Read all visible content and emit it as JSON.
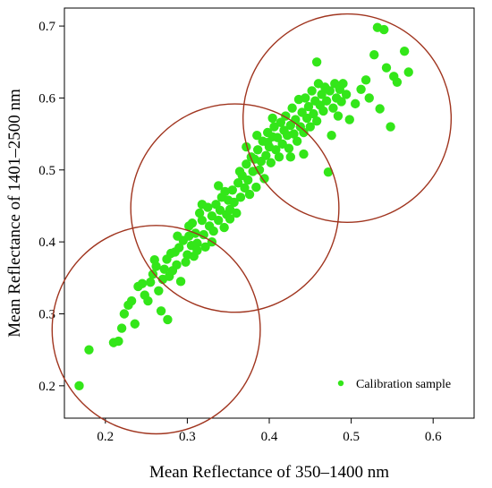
{
  "chart_data": {
    "type": "scatter",
    "xlabel": "Mean Reflectance of 350–1400 nm",
    "ylabel": "Mean Reflectance of 1401–2500 nm",
    "xlim": [
      0.15,
      0.65
    ],
    "ylim": [
      0.155,
      0.725
    ],
    "x_ticks": [
      0.2,
      0.3,
      0.4,
      0.5,
      0.6
    ],
    "x_tick_labels": [
      "0.2",
      "0.3",
      "0.4",
      "0.5",
      "0.6"
    ],
    "y_ticks": [
      0.2,
      0.3,
      0.4,
      0.5,
      0.6,
      0.7
    ],
    "y_tick_labels": [
      "0.2",
      "0.3",
      "0.4",
      "0.5",
      "0.6",
      "0.7"
    ],
    "grid": false,
    "legend": {
      "position": "bottom-right",
      "entries": [
        "Calibration sample"
      ]
    },
    "colors": {
      "points": "#33e619",
      "circles": "#a0351f"
    },
    "circles": [
      {
        "cx": 0.262,
        "cy": 0.278,
        "radius_x": 0.127
      },
      {
        "cx": 0.358,
        "cy": 0.447,
        "radius_x": 0.127
      },
      {
        "cx": 0.495,
        "cy": 0.572,
        "radius_x": 0.127
      }
    ],
    "series": [
      {
        "name": "Calibration sample",
        "points": [
          [
            0.168,
            0.2
          ],
          [
            0.18,
            0.25
          ],
          [
            0.21,
            0.26
          ],
          [
            0.216,
            0.262
          ],
          [
            0.22,
            0.28
          ],
          [
            0.223,
            0.3
          ],
          [
            0.228,
            0.312
          ],
          [
            0.232,
            0.318
          ],
          [
            0.236,
            0.286
          ],
          [
            0.24,
            0.338
          ],
          [
            0.245,
            0.342
          ],
          [
            0.248,
            0.326
          ],
          [
            0.252,
            0.318
          ],
          [
            0.255,
            0.344
          ],
          [
            0.258,
            0.355
          ],
          [
            0.262,
            0.366
          ],
          [
            0.265,
            0.332
          ],
          [
            0.268,
            0.304
          ],
          [
            0.27,
            0.348
          ],
          [
            0.272,
            0.362
          ],
          [
            0.275,
            0.376
          ],
          [
            0.276,
            0.292
          ],
          [
            0.278,
            0.352
          ],
          [
            0.28,
            0.384
          ],
          [
            0.282,
            0.36
          ],
          [
            0.285,
            0.386
          ],
          [
            0.287,
            0.368
          ],
          [
            0.29,
            0.392
          ],
          [
            0.292,
            0.345
          ],
          [
            0.295,
            0.402
          ],
          [
            0.298,
            0.372
          ],
          [
            0.3,
            0.382
          ],
          [
            0.302,
            0.408
          ],
          [
            0.305,
            0.395
          ],
          [
            0.306,
            0.426
          ],
          [
            0.308,
            0.38
          ],
          [
            0.31,
            0.412
          ],
          [
            0.312,
            0.398
          ],
          [
            0.315,
            0.44
          ],
          [
            0.318,
            0.43
          ],
          [
            0.32,
            0.41
          ],
          [
            0.322,
            0.393
          ],
          [
            0.325,
            0.448
          ],
          [
            0.327,
            0.422
          ],
          [
            0.33,
            0.436
          ],
          [
            0.332,
            0.415
          ],
          [
            0.335,
            0.452
          ],
          [
            0.338,
            0.43
          ],
          [
            0.34,
            0.444
          ],
          [
            0.342,
            0.462
          ],
          [
            0.345,
            0.42
          ],
          [
            0.348,
            0.438
          ],
          [
            0.35,
            0.458
          ],
          [
            0.352,
            0.445
          ],
          [
            0.355,
            0.472
          ],
          [
            0.357,
            0.455
          ],
          [
            0.36,
            0.44
          ],
          [
            0.362,
            0.482
          ],
          [
            0.365,
            0.462
          ],
          [
            0.367,
            0.492
          ],
          [
            0.37,
            0.475
          ],
          [
            0.372,
            0.508
          ],
          [
            0.374,
            0.486
          ],
          [
            0.376,
            0.466
          ],
          [
            0.378,
            0.518
          ],
          [
            0.38,
            0.498
          ],
          [
            0.382,
            0.515
          ],
          [
            0.384,
            0.476
          ],
          [
            0.386,
            0.528
          ],
          [
            0.388,
            0.5
          ],
          [
            0.39,
            0.512
          ],
          [
            0.392,
            0.54
          ],
          [
            0.394,
            0.488
          ],
          [
            0.396,
            0.52
          ],
          [
            0.398,
            0.552
          ],
          [
            0.4,
            0.532
          ],
          [
            0.402,
            0.51
          ],
          [
            0.404,
            0.546
          ],
          [
            0.406,
            0.56
          ],
          [
            0.408,
            0.528
          ],
          [
            0.41,
            0.545
          ],
          [
            0.412,
            0.518
          ],
          [
            0.414,
            0.566
          ],
          [
            0.416,
            0.536
          ],
          [
            0.418,
            0.555
          ],
          [
            0.42,
            0.575
          ],
          [
            0.422,
            0.548
          ],
          [
            0.424,
            0.53
          ],
          [
            0.426,
            0.562
          ],
          [
            0.428,
            0.586
          ],
          [
            0.43,
            0.55
          ],
          [
            0.432,
            0.57
          ],
          [
            0.434,
            0.54
          ],
          [
            0.436,
            0.598
          ],
          [
            0.438,
            0.56
          ],
          [
            0.44,
            0.58
          ],
          [
            0.442,
            0.552
          ],
          [
            0.444,
            0.6
          ],
          [
            0.446,
            0.572
          ],
          [
            0.448,
            0.588
          ],
          [
            0.45,
            0.56
          ],
          [
            0.452,
            0.61
          ],
          [
            0.454,
            0.578
          ],
          [
            0.456,
            0.596
          ],
          [
            0.458,
            0.568
          ],
          [
            0.46,
            0.62
          ],
          [
            0.462,
            0.59
          ],
          [
            0.464,
            0.605
          ],
          [
            0.466,
            0.582
          ],
          [
            0.468,
            0.615
          ],
          [
            0.47,
            0.596
          ],
          [
            0.472,
            0.497
          ],
          [
            0.474,
            0.61
          ],
          [
            0.476,
            0.548
          ],
          [
            0.478,
            0.586
          ],
          [
            0.48,
            0.62
          ],
          [
            0.482,
            0.6
          ],
          [
            0.484,
            0.575
          ],
          [
            0.486,
            0.612
          ],
          [
            0.488,
            0.595
          ],
          [
            0.49,
            0.62
          ],
          [
            0.494,
            0.605
          ],
          [
            0.498,
            0.57
          ],
          [
            0.505,
            0.592
          ],
          [
            0.512,
            0.612
          ],
          [
            0.518,
            0.625
          ],
          [
            0.522,
            0.6
          ],
          [
            0.528,
            0.66
          ],
          [
            0.532,
            0.698
          ],
          [
            0.535,
            0.585
          ],
          [
            0.54,
            0.695
          ],
          [
            0.543,
            0.642
          ],
          [
            0.548,
            0.56
          ],
          [
            0.552,
            0.63
          ],
          [
            0.556,
            0.622
          ],
          [
            0.565,
            0.665
          ],
          [
            0.57,
            0.636
          ],
          [
            0.458,
            0.65
          ],
          [
            0.442,
            0.522
          ],
          [
            0.398,
            0.538
          ],
          [
            0.346,
            0.47
          ],
          [
            0.338,
            0.478
          ],
          [
            0.318,
            0.452
          ],
          [
            0.302,
            0.422
          ],
          [
            0.288,
            0.408
          ],
          [
            0.26,
            0.375
          ],
          [
            0.372,
            0.532
          ],
          [
            0.385,
            0.548
          ],
          [
            0.404,
            0.572
          ],
          [
            0.426,
            0.518
          ],
          [
            0.364,
            0.498
          ],
          [
            0.352,
            0.432
          ],
          [
            0.33,
            0.4
          ],
          [
            0.312,
            0.388
          ]
        ]
      }
    ]
  }
}
